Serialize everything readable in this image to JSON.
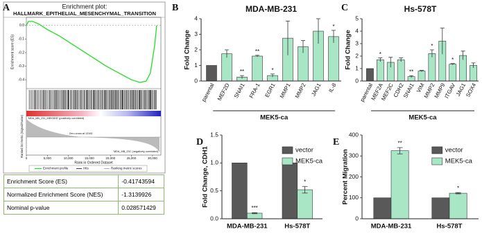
{
  "chart_data": [
    {
      "type": "line",
      "panel": "A",
      "title": "Enrichment plot:",
      "subtitle": "HALLMARK_EPITHELIAL_MESENCHYMAL_TRANSITION",
      "ylabel": "Enrichment score (ES)",
      "xlabel": "Rank in Ordered Dataset",
      "lower_ylabel": "Ranked list metric (Signal2Noise)",
      "x": [
        0,
        500,
        1500,
        3000,
        5000,
        8000,
        10000,
        13000,
        16000,
        19000,
        22000,
        25000,
        27000,
        28500,
        29500,
        30500,
        31000
      ],
      "series": [
        {
          "name": "Enrichment profile",
          "color": "#22dd22",
          "values": [
            0,
            0.03,
            0.03,
            0.01,
            -0.03,
            -0.08,
            -0.12,
            -0.18,
            -0.24,
            -0.3,
            -0.35,
            -0.4,
            -0.42,
            -0.41,
            -0.35,
            -0.15,
            0
          ]
        }
      ],
      "legend_extra": [
        "Hits",
        "Ranking metric scores"
      ],
      "annotations": [
        "'MDA_MB_231_MEK5DD' (positively correlated)",
        "Zero cross at 13162",
        "'MDA_MB_231' (negatively correlated)"
      ],
      "xlim": [
        0,
        32000
      ],
      "xticks": [
        0,
        {
          "value": 5000,
          "label": "5,000"
        },
        {
          "value": 10000,
          "label": "10,000"
        },
        {
          "value": 15000,
          "label": "15,000"
        },
        {
          "value": 20000,
          "label": "20,000"
        },
        {
          "value": 25000,
          "label": "25,000"
        },
        {
          "value": 30000,
          "label": "30,000"
        }
      ],
      "ylim": [
        -0.45,
        0.06
      ],
      "yticks": [
        {
          "value": 0,
          "label": "0.0"
        },
        {
          "value": -0.1,
          "label": "-0.1"
        },
        {
          "value": -0.2,
          "label": "-0.2"
        },
        {
          "value": -0.3,
          "label": "-0.3"
        },
        {
          "value": -0.4,
          "label": "-0.4"
        }
      ]
    },
    {
      "type": "bar",
      "panel": "B",
      "title": "MDA-MB-231",
      "ylabel": "Fold Change",
      "group_label": "MEK5-ca",
      "categories": [
        "parental",
        "MEF2D",
        "SNAI1",
        "FRA-1",
        "EGR1",
        "MMP1",
        "MMP2",
        "JAG1",
        "IL-8"
      ],
      "values": [
        1,
        1.75,
        0.25,
        1.6,
        0.35,
        2.75,
        2.2,
        3.2,
        2.85
      ],
      "errors": [
        0,
        0.25,
        0.1,
        0.05,
        0.1,
        1.1,
        0.4,
        0.8,
        0.4
      ],
      "significance": [
        null,
        null,
        "**",
        "**",
        "*",
        null,
        null,
        null,
        "*"
      ],
      "colors": [
        "#595959",
        "#a8e6c6",
        "#a8e6c6",
        "#a8e6c6",
        "#a8e6c6",
        "#a8e6c6",
        "#a8e6c6",
        "#a8e6c6",
        "#a8e6c6"
      ],
      "ylim": [
        0,
        4
      ],
      "yticks": [
        0,
        1,
        2,
        3,
        4
      ]
    },
    {
      "type": "bar",
      "panel": "C",
      "title": "Hs-578T",
      "ylabel": "Fold Change",
      "group_label": "MEK5-ca",
      "categories": [
        "parental",
        "MEF2A",
        "MEF2C",
        "CDH2",
        "SNAI1",
        "VIM",
        "MMP2",
        "MMP9",
        "ITGAV",
        "JAG1",
        "SOX4"
      ],
      "values": [
        1,
        1.7,
        1.5,
        1.7,
        0.35,
        0.8,
        2.2,
        3.2,
        1.35,
        2.05,
        1.25
      ],
      "errors": [
        0,
        0.15,
        0.4,
        0.15,
        0.08,
        0.05,
        0.3,
        1.05,
        0.05,
        0.35,
        0.2
      ],
      "significance": [
        null,
        "*",
        null,
        null,
        "**",
        null,
        "*",
        null,
        "*",
        null,
        null
      ],
      "colors": [
        "#595959",
        "#a8e6c6",
        "#a8e6c6",
        "#a8e6c6",
        "#a8e6c6",
        "#a8e6c6",
        "#a8e6c6",
        "#a8e6c6",
        "#a8e6c6",
        "#a8e6c6",
        "#a8e6c6"
      ],
      "ylim": [
        0,
        5
      ],
      "yticks": [
        0,
        1,
        2,
        3,
        4,
        5
      ]
    },
    {
      "type": "grouped_bar",
      "panel": "D",
      "ylabel": "Fold Change, CDH1",
      "categories": [
        "MDA-MB-231",
        "Hs-578T"
      ],
      "series": [
        {
          "name": "vector",
          "color": "#595959",
          "values": [
            1,
            1
          ]
        },
        {
          "name": "MEK5-ca",
          "color": "#a8e6c6",
          "values": [
            0.1,
            0.52
          ],
          "errors": [
            0.01,
            0.06
          ],
          "significance": [
            "***",
            "*"
          ]
        }
      ],
      "ylim": [
        0,
        1.5
      ],
      "yticks": [
        {
          "value": 0,
          "label": "0.0"
        },
        {
          "value": 0.5,
          "label": "0.5"
        },
        {
          "value": 1,
          "label": "1.0"
        },
        {
          "value": 1.5,
          "label": "1.5"
        }
      ]
    },
    {
      "type": "grouped_bar",
      "panel": "E",
      "ylabel": "Percent Migration",
      "categories": [
        "MDA-MB-231",
        "Hs-578T"
      ],
      "series": [
        {
          "name": "vector",
          "color": "#595959",
          "values": [
            100,
            100
          ]
        },
        {
          "name": "MEK5-ca",
          "color": "#a8e6c6",
          "values": [
            325,
            122
          ],
          "errors": [
            15,
            3
          ],
          "significance": [
            "**",
            "*"
          ]
        }
      ],
      "ylim": [
        0,
        400
      ],
      "yticks": [
        0,
        100,
        200,
        300,
        400
      ]
    }
  ],
  "table": {
    "rows": [
      [
        "Enrichment Score (ES)",
        -0.41743594
      ],
      [
        "Normalized Enrichment Score (NES)",
        -1.3139926
      ],
      [
        "Nominal p-value",
        0.028571429
      ]
    ]
  }
}
